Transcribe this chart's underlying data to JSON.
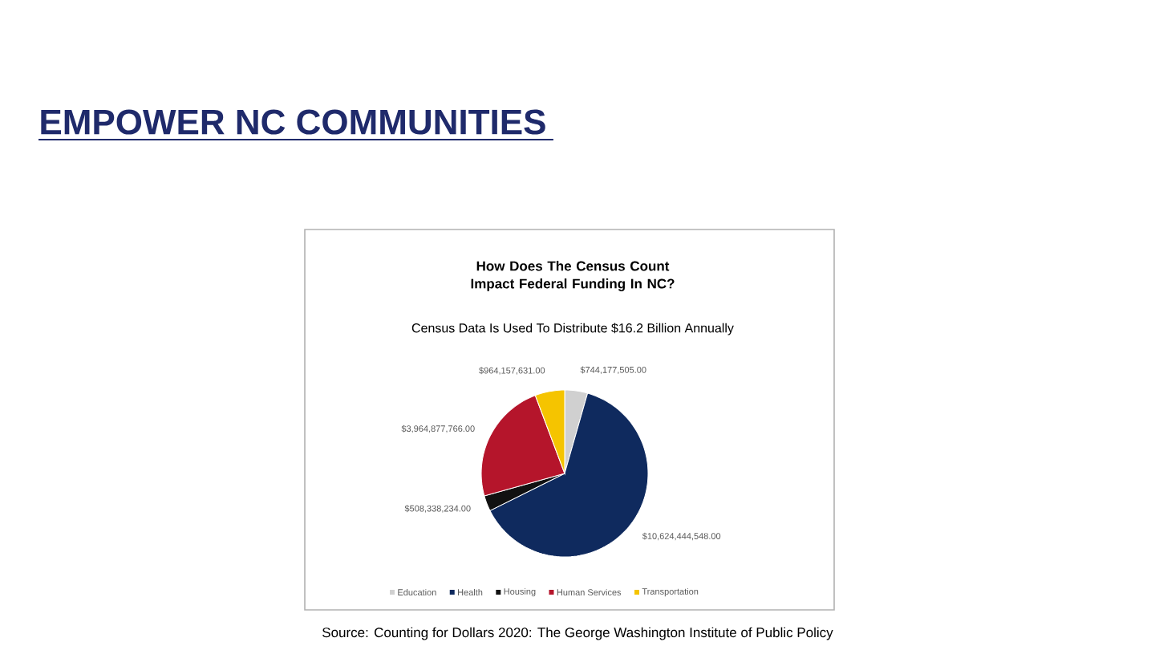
{
  "chart_data": {
    "type": "pie",
    "title": "How Does The Census Count Impact Federal Funding In NC?",
    "subtitle": "Census Data Is Used To Distribute $16.2 Billion Annually",
    "categories": [
      "Education",
      "Health",
      "Housing",
      "Human Services",
      "Transportation"
    ],
    "values": [
      744177505,
      10624444548,
      508338234,
      3964877766,
      964157631
    ],
    "value_labels": [
      "$744,177,505.00",
      "$10,624,444,548.00",
      "$508,338,234.00",
      "$3,964,877,766.00",
      "$964,157,631.00"
    ],
    "colors": [
      "#d0d0d0",
      "#0f2a5e",
      "#111111",
      "#b5152b",
      "#f5c400"
    ],
    "legend": "bottom",
    "annotations": [
      "EMPOWER NC COMMUNITIES",
      "Source: Counting for Dollars 2020: The George Washington Institute of Public Policy"
    ]
  }
}
